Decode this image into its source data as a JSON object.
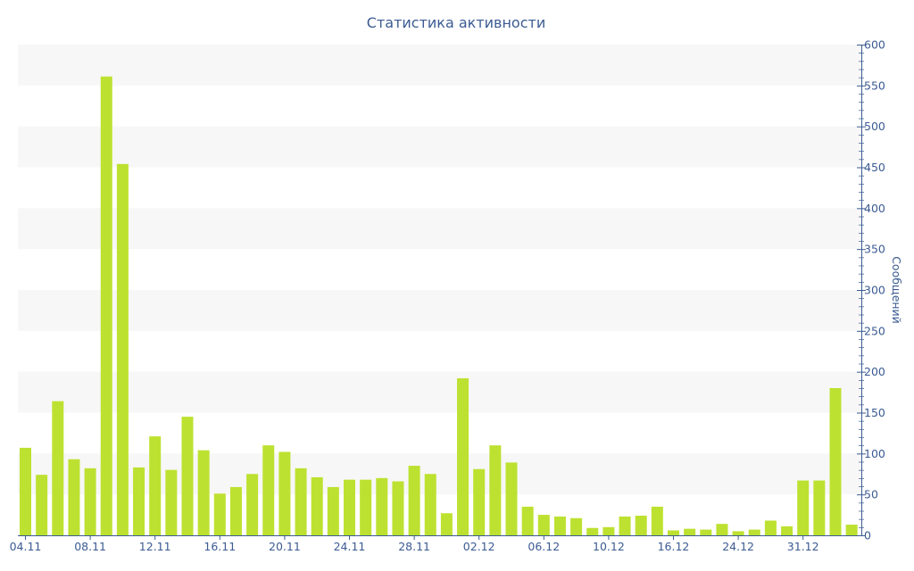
{
  "chart_data": {
    "type": "bar",
    "title": "Статистика активности",
    "xlabel": "",
    "ylabel": "Сообщений",
    "ylim": [
      0,
      600
    ],
    "y_ticks": [
      0,
      50,
      100,
      150,
      200,
      250,
      300,
      350,
      400,
      450,
      500,
      550,
      600
    ],
    "y_axis_position": "right",
    "x_tick_labels": [
      {
        "label": "04.11",
        "index": 0
      },
      {
        "label": "08.11",
        "index": 4
      },
      {
        "label": "12.11",
        "index": 8
      },
      {
        "label": "16.11",
        "index": 12
      },
      {
        "label": "20.11",
        "index": 16
      },
      {
        "label": "24.11",
        "index": 20
      },
      {
        "label": "28.11",
        "index": 24
      },
      {
        "label": "02.12",
        "index": 28
      },
      {
        "label": "06.12",
        "index": 32
      },
      {
        "label": "10.12",
        "index": 36
      },
      {
        "label": "16.12",
        "index": 40
      },
      {
        "label": "24.12",
        "index": 44
      },
      {
        "label": "31.12",
        "index": 48
      }
    ],
    "values": [
      107,
      74,
      164,
      93,
      82,
      561,
      454,
      83,
      121,
      80,
      145,
      104,
      51,
      59,
      75,
      110,
      102,
      82,
      71,
      59,
      68,
      68,
      70,
      66,
      85,
      75,
      27,
      192,
      81,
      110,
      89,
      35,
      25,
      23,
      21,
      9,
      10,
      23,
      24,
      35,
      6,
      8,
      7,
      14,
      5,
      7,
      18,
      11,
      67,
      67,
      180,
      13
    ],
    "bar_color": "#bde130",
    "grid": "alternating horizontal bands",
    "band_color": "#f7f7f7",
    "axis_color": "#3b5b92"
  }
}
